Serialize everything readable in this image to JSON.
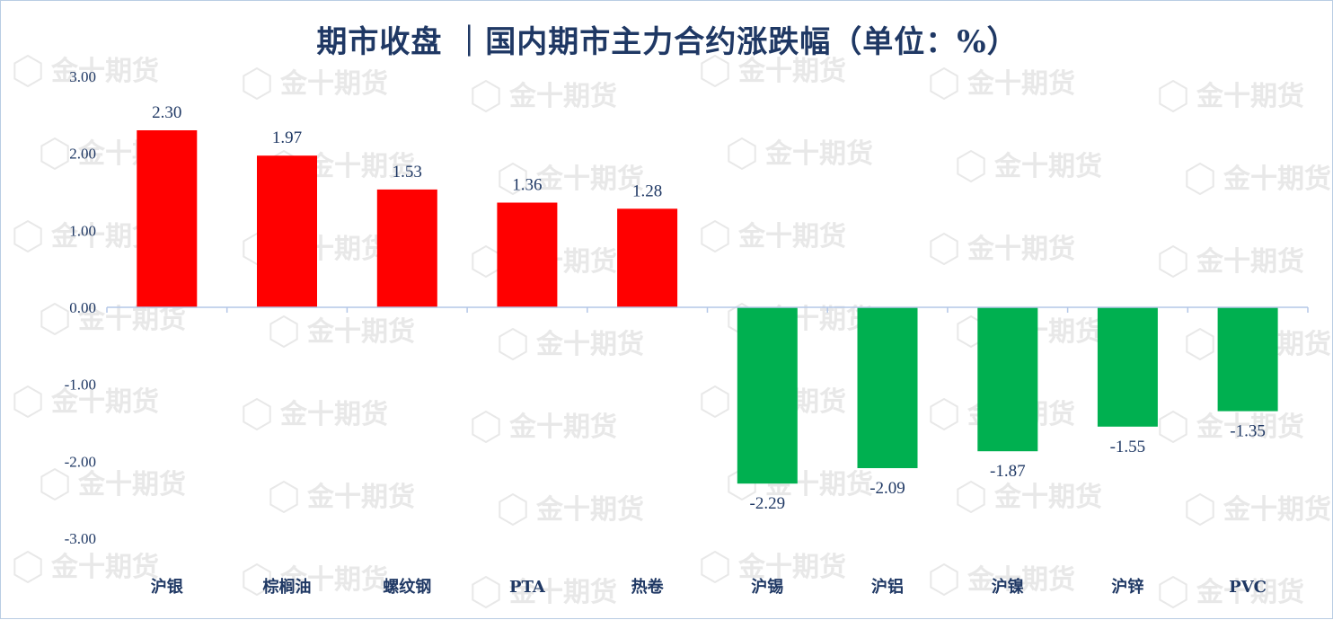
{
  "chart_data": {
    "type": "bar",
    "title": "期市收盘 ｜国内期市主力合约涨跌幅（单位：%）",
    "categories": [
      "沪银",
      "棕榈油",
      "螺纹钢",
      "PTA",
      "热卷",
      "沪锡",
      "沪铝",
      "沪镍",
      "沪锌",
      "PVC"
    ],
    "values": [
      2.3,
      1.97,
      1.53,
      1.36,
      1.28,
      -2.29,
      -2.09,
      -1.87,
      -1.55,
      -1.35
    ],
    "value_labels": [
      "2.30",
      "1.97",
      "1.53",
      "1.36",
      "1.28",
      "-2.29",
      "-2.09",
      "-1.87",
      "-1.55",
      "-1.35"
    ],
    "ylim": [
      -3,
      3
    ],
    "yticks": [
      3,
      2,
      1,
      0,
      -1,
      -2,
      -3
    ],
    "ytick_labels": [
      "3.00",
      "2.00",
      "1.00",
      "0.00",
      "-1.00",
      "-2.00",
      "-3.00"
    ],
    "xlabel": "",
    "ylabel": "",
    "grid": false,
    "legend": "none",
    "colors": {
      "positive": "#ff0000",
      "negative": "#00b050",
      "axis": "#b4c7e7",
      "text": "#1f3864"
    }
  },
  "watermark": {
    "text": "金十期货"
  }
}
